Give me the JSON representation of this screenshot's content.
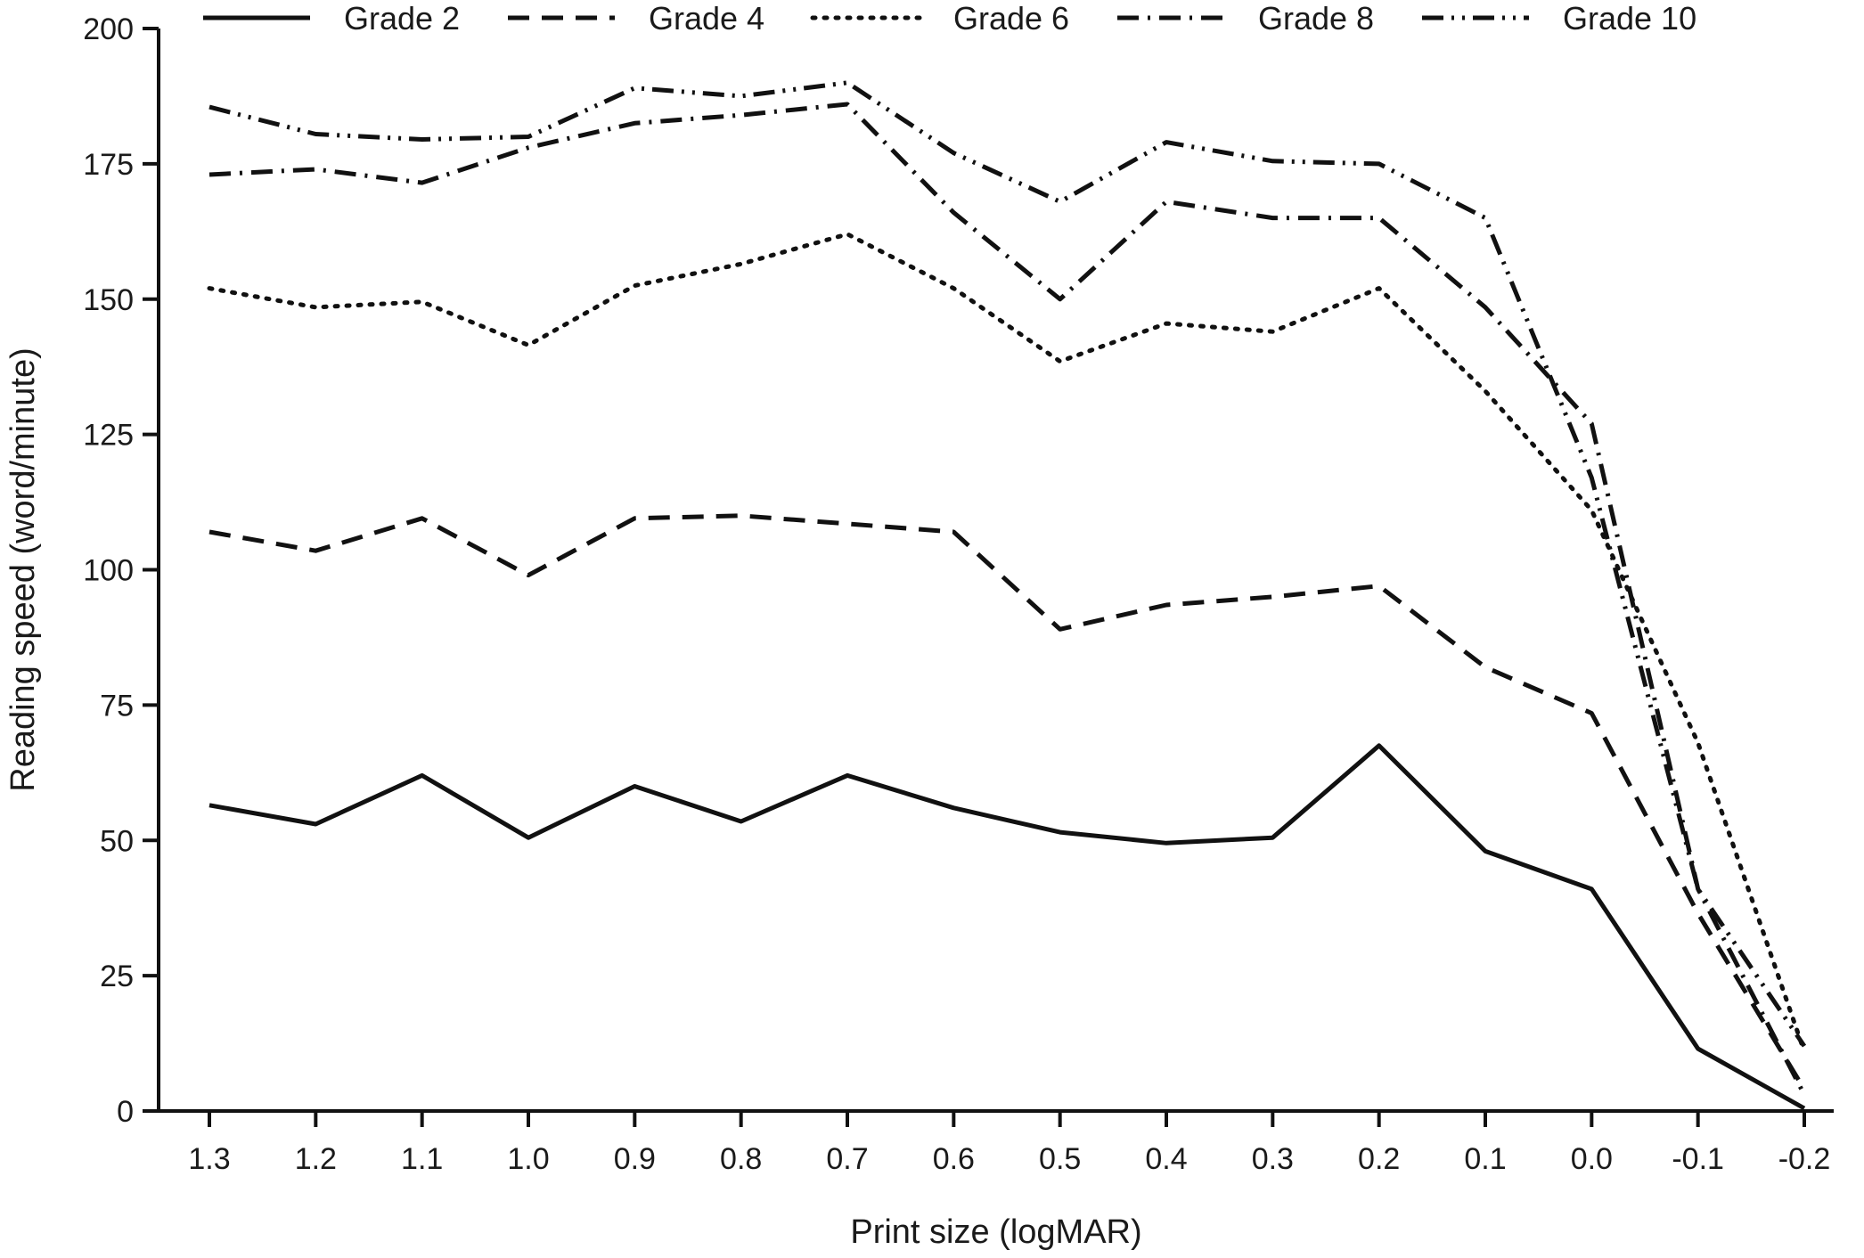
{
  "chart_data": {
    "type": "line",
    "title": "",
    "xlabel": "Print size (logMAR)",
    "ylabel": "Reading speed (word/minute)",
    "ylim": [
      0,
      200
    ],
    "yticks": [
      "0",
      "25",
      "50",
      "75",
      "100",
      "125",
      "150",
      "175",
      "200"
    ],
    "categories": [
      "1.3",
      "1.2",
      "1.1",
      "1.0",
      "0.9",
      "0.8",
      "0.7",
      "0.6",
      "0.5",
      "0.4",
      "0.3",
      "0.2",
      "0.1",
      "0.0",
      "-0.1",
      "-0.2"
    ],
    "grid": false,
    "legend_position": "top",
    "series": [
      {
        "name": "Grade 2",
        "style": "solid",
        "values": [
          56.5,
          53,
          62,
          50.5,
          60,
          53.5,
          62,
          56,
          51.5,
          49.5,
          50.5,
          67.5,
          48,
          41,
          11.5,
          0.5
        ]
      },
      {
        "name": "Grade 4",
        "style": "dashed",
        "values": [
          107,
          103.5,
          109.5,
          99,
          109.5,
          110,
          108.5,
          107,
          89,
          93.5,
          95,
          97,
          82,
          73.5,
          36.5,
          4
        ]
      },
      {
        "name": "Grade 6",
        "style": "dotted",
        "values": [
          152,
          148.5,
          149.5,
          141.5,
          152.5,
          156.5,
          162,
          152,
          138.5,
          145.5,
          144,
          152,
          133,
          111,
          68,
          11
        ]
      },
      {
        "name": "Grade 8",
        "style": "dashdot",
        "values": [
          173,
          174,
          171.5,
          178,
          182.5,
          184,
          186,
          166,
          150,
          168,
          165,
          165,
          148.5,
          127,
          41,
          3
        ]
      },
      {
        "name": "Grade 10",
        "style": "dashdotdot",
        "values": [
          185.5,
          180.5,
          179.5,
          180,
          189,
          187.5,
          190,
          177,
          168,
          179,
          175.5,
          175,
          165,
          117,
          41,
          12
        ]
      }
    ]
  }
}
